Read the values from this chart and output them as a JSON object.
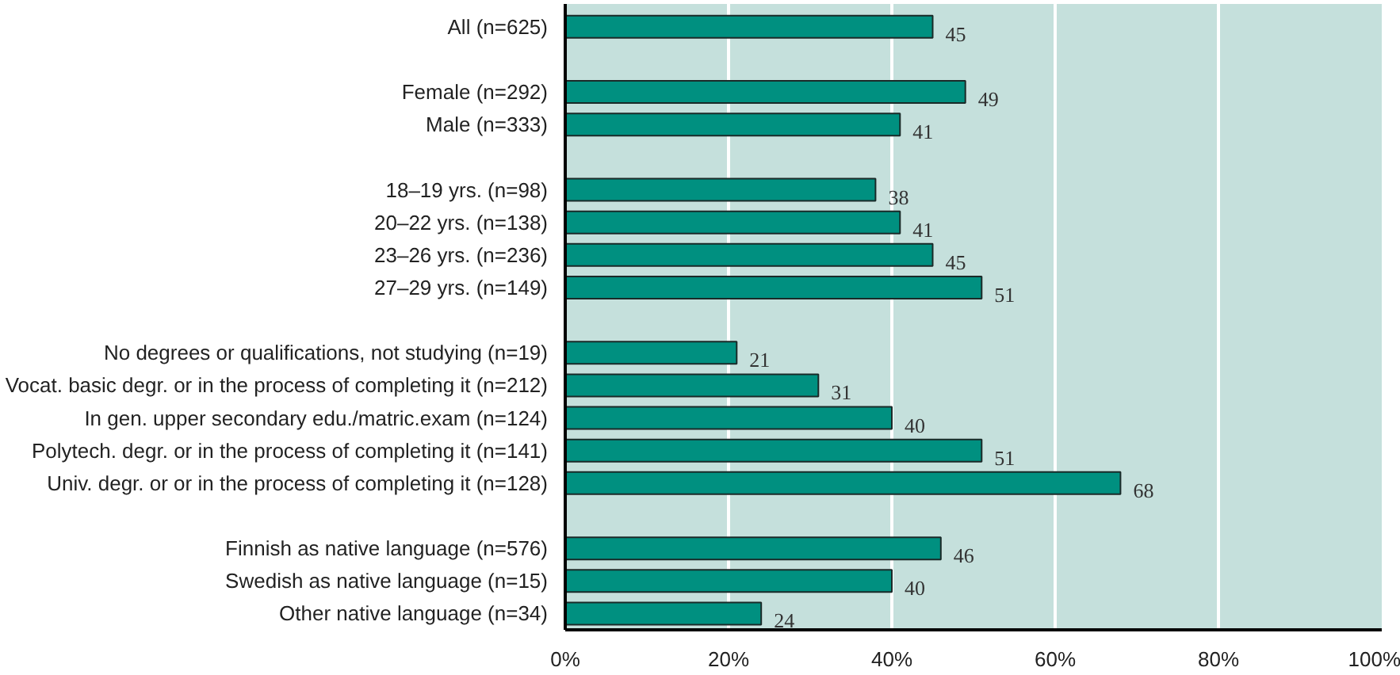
{
  "chart_data": {
    "type": "bar",
    "orientation": "horizontal",
    "categories": [
      "All (n=625)",
      null,
      "Female (n=292)",
      "Male (n=333)",
      null,
      "18–19 yrs. (n=98)",
      "20–22 yrs. (n=138)",
      "23–26 yrs. (n=236)",
      "27–29 yrs. (n=149)",
      null,
      "No degrees or qualifications, not studying (n=19)",
      "Vocat. basic degr. or in the process of completing it (n=212)",
      "In gen. upper secondary edu./matric.exam (n=124)",
      "Polytech. degr. or in the process of completing it (n=141)",
      "Univ. degr. or or in the process of completing it (n=128)",
      null,
      "Finnish as native language (n=576)",
      "Swedish as native language (n=15)",
      "Other native language (n=34)"
    ],
    "values": [
      45,
      null,
      49,
      41,
      null,
      38,
      41,
      45,
      51,
      null,
      21,
      31,
      40,
      51,
      68,
      null,
      46,
      40,
      24
    ],
    "color": "#009080",
    "xlim": [
      0,
      100
    ],
    "xticks": [
      {
        "value": 0,
        "label": "0%"
      },
      {
        "value": 20,
        "label": "20%"
      },
      {
        "value": 40,
        "label": "40%"
      },
      {
        "value": 60,
        "label": "60%"
      },
      {
        "value": 80,
        "label": "80%"
      },
      {
        "value": 100,
        "label": "100%"
      }
    ],
    "grid": "x",
    "data_labels": true
  }
}
